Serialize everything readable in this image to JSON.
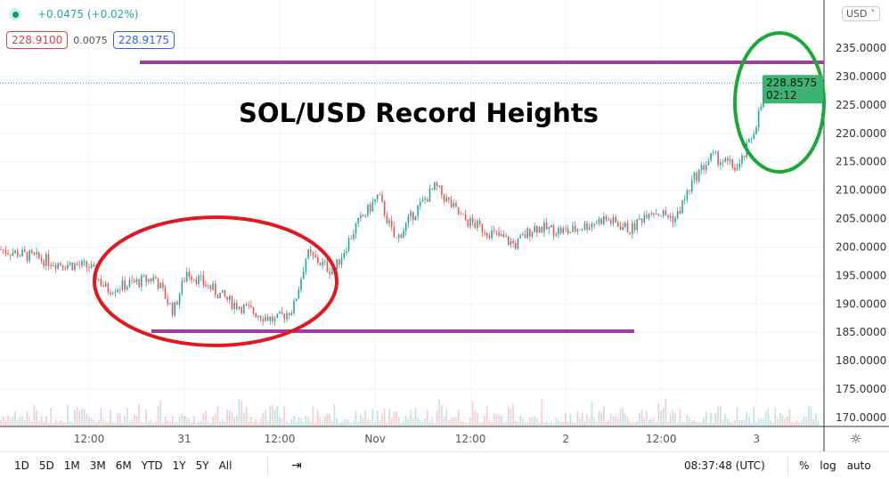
{
  "legend": {
    "change": "+0.0475 (+0.02%)",
    "bid": "228.9100",
    "spread": "0.0075",
    "ask": "228.9175",
    "currency": "USD"
  },
  "chart_data": {
    "type": "candlestick",
    "title": "SOL/USD Record Heights",
    "ylim": [
      168,
      237.5
    ],
    "y_ticks": [
      "170.0000",
      "175.0000",
      "180.0000",
      "185.0000",
      "190.0000",
      "195.0000",
      "200.0000",
      "205.0000",
      "210.0000",
      "215.0000",
      "220.0000",
      "225.0000",
      "230.0000",
      "235.0000"
    ],
    "x_ticks": [
      "12:00",
      "31",
      "12:00",
      "Nov",
      "12:00",
      "2",
      "12:00",
      "3"
    ],
    "x_tick_hours": [
      12,
      24,
      36,
      48,
      60,
      72,
      84,
      96
    ],
    "close_path": [
      [
        0.1,
        199.6
      ],
      [
        5.7,
        197.3
      ],
      [
        9.4,
        196.5
      ],
      [
        11.2,
        192.5
      ],
      [
        16.3,
        194.6
      ],
      [
        18.2,
        188.6
      ],
      [
        19.6,
        195.7
      ],
      [
        24.3,
        190.2
      ],
      [
        28.9,
        187
      ],
      [
        30.8,
        189.3
      ],
      [
        32.2,
        198.8
      ],
      [
        35,
        195.7
      ],
      [
        37.3,
        203.5
      ],
      [
        39.7,
        209
      ],
      [
        41.5,
        201
      ],
      [
        43.4,
        205.9
      ],
      [
        45.7,
        210.6
      ],
      [
        48.5,
        205
      ],
      [
        54.1,
        200.4
      ],
      [
        56,
        203.5
      ],
      [
        59.7,
        202.7
      ],
      [
        63.4,
        205
      ],
      [
        66.2,
        203
      ],
      [
        68.1,
        206.6
      ],
      [
        70.9,
        205
      ],
      [
        72.8,
        212
      ],
      [
        74.7,
        216
      ],
      [
        77.5,
        213.7
      ],
      [
        79,
        220
      ],
      [
        80.4,
        227.8
      ],
      [
        82.3,
        229.4
      ],
      [
        83.6,
        226
      ],
      [
        85.5,
        229.4
      ],
      [
        86,
        228.86
      ]
    ],
    "last_price": "228.8575",
    "countdown": "02:12",
    "annotations": {
      "resistance": 232.5,
      "support": 185.2,
      "colors": {
        "lines": "#9c3fa0",
        "low_circle": "#e0191f",
        "high_circle": "#1aa838"
      }
    },
    "colors": {
      "up": "#26a69a",
      "down": "#ef5350"
    }
  },
  "toolbar": {
    "ranges": [
      "1D",
      "5D",
      "1M",
      "3M",
      "6M",
      "YTD",
      "1Y",
      "5Y",
      "All"
    ],
    "time": "08:37:48 (UTC)",
    "pct": "%",
    "log": "log",
    "auto": "auto"
  }
}
